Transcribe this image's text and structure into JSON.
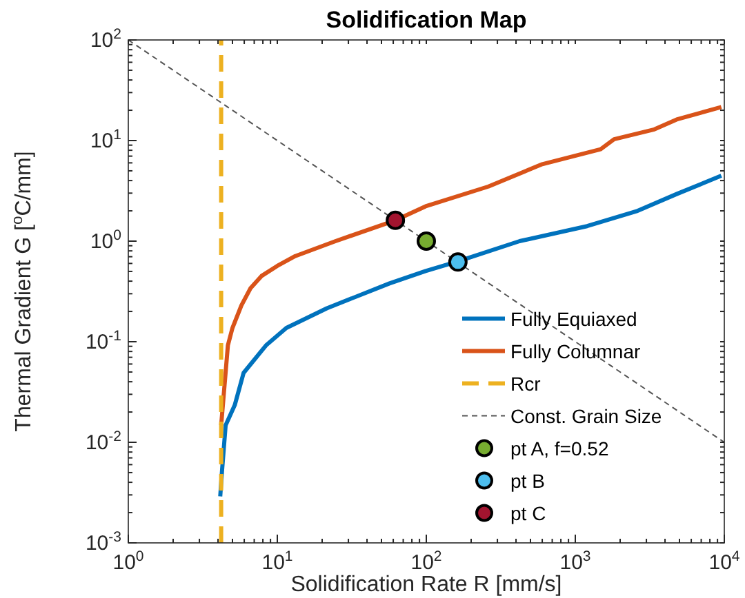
{
  "chart_data": {
    "type": "line",
    "title": "Solidification Map",
    "xlabel": "Solidification Rate R [mm/s]",
    "ylabel": "Thermal Gradient G [$^{o}$C/mm]",
    "log": "xy",
    "grid": false,
    "legend": "bottom right",
    "xlim": [
      1,
      10000
    ],
    "ylim": [
      0.001,
      100
    ],
    "xticks": [
      {
        "value": 1,
        "label": "10$^{0}$"
      },
      {
        "value": 10,
        "label": "10$^{1}$"
      },
      {
        "value": 100,
        "label": "10$^{2}$"
      },
      {
        "value": 1000,
        "label": "10$^{3}$"
      },
      {
        "value": 10000,
        "label": "10$^{4}$"
      }
    ],
    "yticks": [
      {
        "value": 0.001,
        "label": "10$^{-3}$"
      },
      {
        "value": 0.01,
        "label": "10$^{-2}$"
      },
      {
        "value": 0.1,
        "label": "10$^{-1}$"
      },
      {
        "value": 1,
        "label": "10$^{0}$"
      },
      {
        "value": 10,
        "label": "10$^{1}$"
      },
      {
        "value": 100,
        "label": "10$^{2}$"
      }
    ],
    "series": [
      {
        "name": "Fully Equiaxed",
        "color": "#0072bd",
        "line_style": "solid",
        "x": [
          4.14,
          4.26,
          4.5,
          5.18,
          5.94,
          8.4,
          11.5,
          21.5,
          56.6,
          99,
          163,
          423,
          1200,
          2570,
          4790,
          9550
        ],
        "values": [
          0.0029,
          0.0053,
          0.0148,
          0.0234,
          0.049,
          0.092,
          0.137,
          0.215,
          0.38,
          0.505,
          0.63,
          1.0,
          1.41,
          1.98,
          2.94,
          4.47
        ]
      },
      {
        "name": "Fully Columnar",
        "color": "#d95319",
        "line_style": "solid",
        "x": [
          4.2,
          4.66,
          5.0,
          5.74,
          6.6,
          7.83,
          10,
          13.2,
          24.6,
          62,
          99,
          261,
          600,
          1479,
          1820,
          3390,
          4790,
          9550
        ],
        "values": [
          0.0148,
          0.092,
          0.137,
          0.229,
          0.339,
          0.45,
          0.567,
          0.71,
          1.0,
          1.61,
          2.22,
          3.49,
          5.82,
          8.2,
          10.3,
          12.9,
          16.2,
          21.5
        ]
      },
      {
        "name": "Rcr",
        "color": "#edb120",
        "line_style": "dashed",
        "x": [
          4.2,
          4.2
        ],
        "values": [
          0.001,
          100
        ]
      },
      {
        "name": "Const. Grain Size",
        "color": "#555555",
        "line_style": "dotted",
        "x": [
          1,
          10000
        ],
        "values": [
          100,
          0.01
        ]
      },
      {
        "name": "pt A, f=0.52",
        "type": "scatter",
        "marker": "circle",
        "color": "#77ac30",
        "x": [
          100
        ],
        "values": [
          1.0
        ]
      },
      {
        "name": "pt B",
        "type": "scatter",
        "marker": "circle",
        "color": "#4dbeee",
        "x": [
          163
        ],
        "values": [
          0.62
        ]
      },
      {
        "name": "pt C",
        "type": "scatter",
        "marker": "circle",
        "color": "#a2142f",
        "x": [
          62
        ],
        "values": [
          1.61
        ]
      }
    ]
  }
}
